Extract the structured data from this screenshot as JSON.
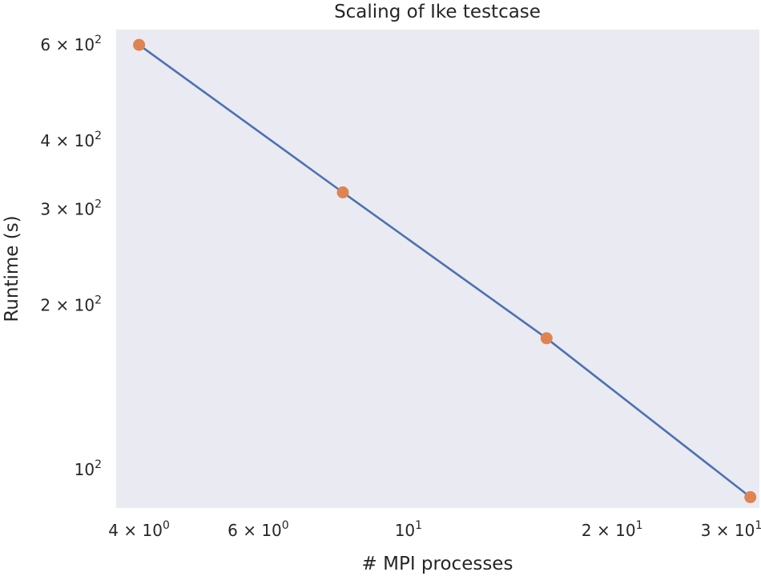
{
  "chart_data": {
    "type": "line",
    "title": "Scaling of Ike testcase",
    "xlabel": "# MPI processes",
    "ylabel": "Runtime (s)",
    "x_scale": "log",
    "y_scale": "log",
    "xlim": [
      3.7,
      33
    ],
    "ylim": [
      85,
      640
    ],
    "grid": false,
    "x_ticks": [
      {
        "value": 4,
        "mantissa": "4",
        "base": "10",
        "exp": "0"
      },
      {
        "value": 6,
        "mantissa": "6",
        "base": "10",
        "exp": "0"
      },
      {
        "value": 10,
        "mantissa": "",
        "base": "10",
        "exp": "1"
      },
      {
        "value": 20,
        "mantissa": "2",
        "base": "10",
        "exp": "1"
      },
      {
        "value": 30,
        "mantissa": "3",
        "base": "10",
        "exp": "1"
      }
    ],
    "y_ticks": [
      {
        "value": 600,
        "mantissa": "6",
        "base": "10",
        "exp": "2"
      },
      {
        "value": 400,
        "mantissa": "4",
        "base": "10",
        "exp": "2"
      },
      {
        "value": 300,
        "mantissa": "3",
        "base": "10",
        "exp": "2"
      },
      {
        "value": 200,
        "mantissa": "2",
        "base": "10",
        "exp": "2"
      },
      {
        "value": 100,
        "mantissa": "",
        "base": "10",
        "exp": "2"
      }
    ],
    "series": [
      {
        "x": [
          4,
          8,
          16,
          32
        ],
        "y": [
          600,
          322,
          174,
          89
        ],
        "line_color": "#4c72b0",
        "marker_color": "#dd8452"
      }
    ],
    "background_color": "#eaeaf2"
  }
}
